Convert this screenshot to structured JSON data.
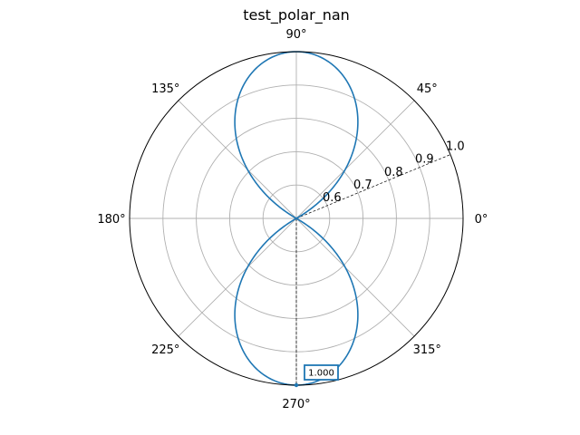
{
  "chart_data": {
    "type": "line",
    "projection": "polar",
    "title": "test_polar_nan",
    "grid": true,
    "theta_ticks_deg": [
      0,
      45,
      90,
      135,
      180,
      225,
      270,
      315
    ],
    "theta_tick_labels": [
      "0°",
      "45°",
      "90°",
      "135°",
      "180°",
      "225°",
      "270°",
      "315°"
    ],
    "r_ticks": [
      0.6,
      0.7,
      0.8,
      0.9,
      1.0
    ],
    "r_tick_labels": [
      "0.6",
      "0.7",
      "0.8",
      "0.9",
      "1.0"
    ],
    "rlim": [
      0.5,
      1.0
    ],
    "r_label_position_deg": 22.5,
    "series": [
      {
        "color": "#1f77b4",
        "function": "r = |sin(theta)|",
        "theta_deg": [
          0,
          10,
          20,
          30,
          40,
          50,
          60,
          70,
          80,
          90,
          100,
          110,
          120,
          130,
          140,
          150,
          160,
          170,
          180,
          190,
          200,
          210,
          220,
          230,
          240,
          250,
          260,
          270,
          280,
          290,
          300,
          310,
          320,
          330,
          340,
          350,
          360
        ],
        "r": [
          0.0,
          0.174,
          0.342,
          0.5,
          0.643,
          0.766,
          0.866,
          0.94,
          0.985,
          1.0,
          0.985,
          0.94,
          0.866,
          0.766,
          0.643,
          0.5,
          0.342,
          0.174,
          0.0,
          0.174,
          0.342,
          0.5,
          0.643,
          0.766,
          0.866,
          0.94,
          0.985,
          1.0,
          0.985,
          0.94,
          0.866,
          0.766,
          0.643,
          0.5,
          0.342,
          0.174,
          0.0
        ]
      }
    ],
    "annotation": {
      "text": "1.000",
      "theta_deg": 270,
      "r": 1.0,
      "box_color": "#1f77b4"
    },
    "guide_lines": [
      {
        "style": "dashed",
        "theta_deg": 270
      },
      {
        "style": "dashed",
        "theta_deg": 22.5
      }
    ]
  },
  "colors": {
    "series": "#1f77b4",
    "grid": "#b0b0b0",
    "axis": "#000000",
    "background": "#ffffff"
  }
}
